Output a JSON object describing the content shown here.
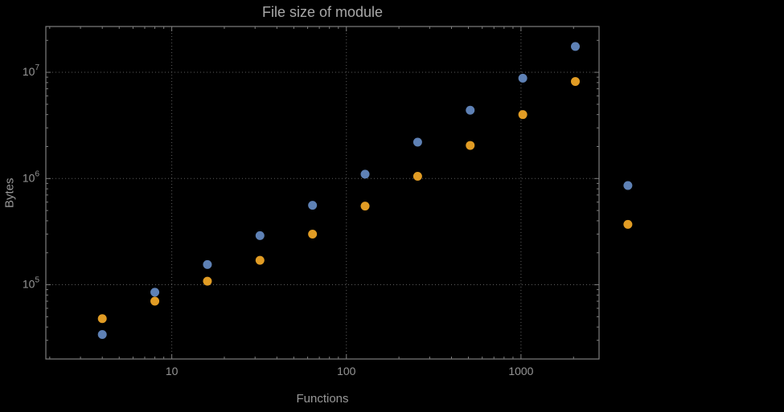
{
  "colors": {
    "background": "#000000",
    "frame": "#7e7e7e",
    "grid": "#5d5d5d",
    "tick_text": "#969696",
    "title_text": "#a8a8a8",
    "series_blue": "#5e81b5",
    "series_orange": "#e19c24"
  },
  "chart_data": {
    "type": "scatter",
    "title": "File size of module",
    "xlabel": "Functions",
    "ylabel": "Bytes",
    "x_scale": "log",
    "y_scale": "log",
    "xlim": [
      1.9,
      2800
    ],
    "ylim": [
      20000,
      27000000
    ],
    "x_ticks": [
      10,
      100,
      1000
    ],
    "x_tick_labels": [
      "10",
      "100",
      "1000"
    ],
    "y_ticks": [
      100000,
      1000000,
      10000000
    ],
    "y_tick_exponents": [
      5,
      6,
      7
    ],
    "grid": "dotted",
    "legend": "none",
    "marker_radius": 5.5,
    "x": [
      4,
      8,
      16,
      32,
      64,
      128,
      256,
      512,
      1024,
      2048,
      4096
    ],
    "series": [
      {
        "name": "series-1-blue",
        "color": "#5e81b5",
        "values": [
          34000,
          85000,
          155000,
          290000,
          560000,
          1100000,
          2200000,
          4400000,
          8800000,
          17500000,
          860000
        ]
      },
      {
        "name": "series-2-orange",
        "color": "#e19c24",
        "values": [
          48000,
          70000,
          108000,
          170000,
          300000,
          550000,
          1050000,
          2050000,
          4000000,
          8200000,
          370000
        ]
      }
    ]
  }
}
